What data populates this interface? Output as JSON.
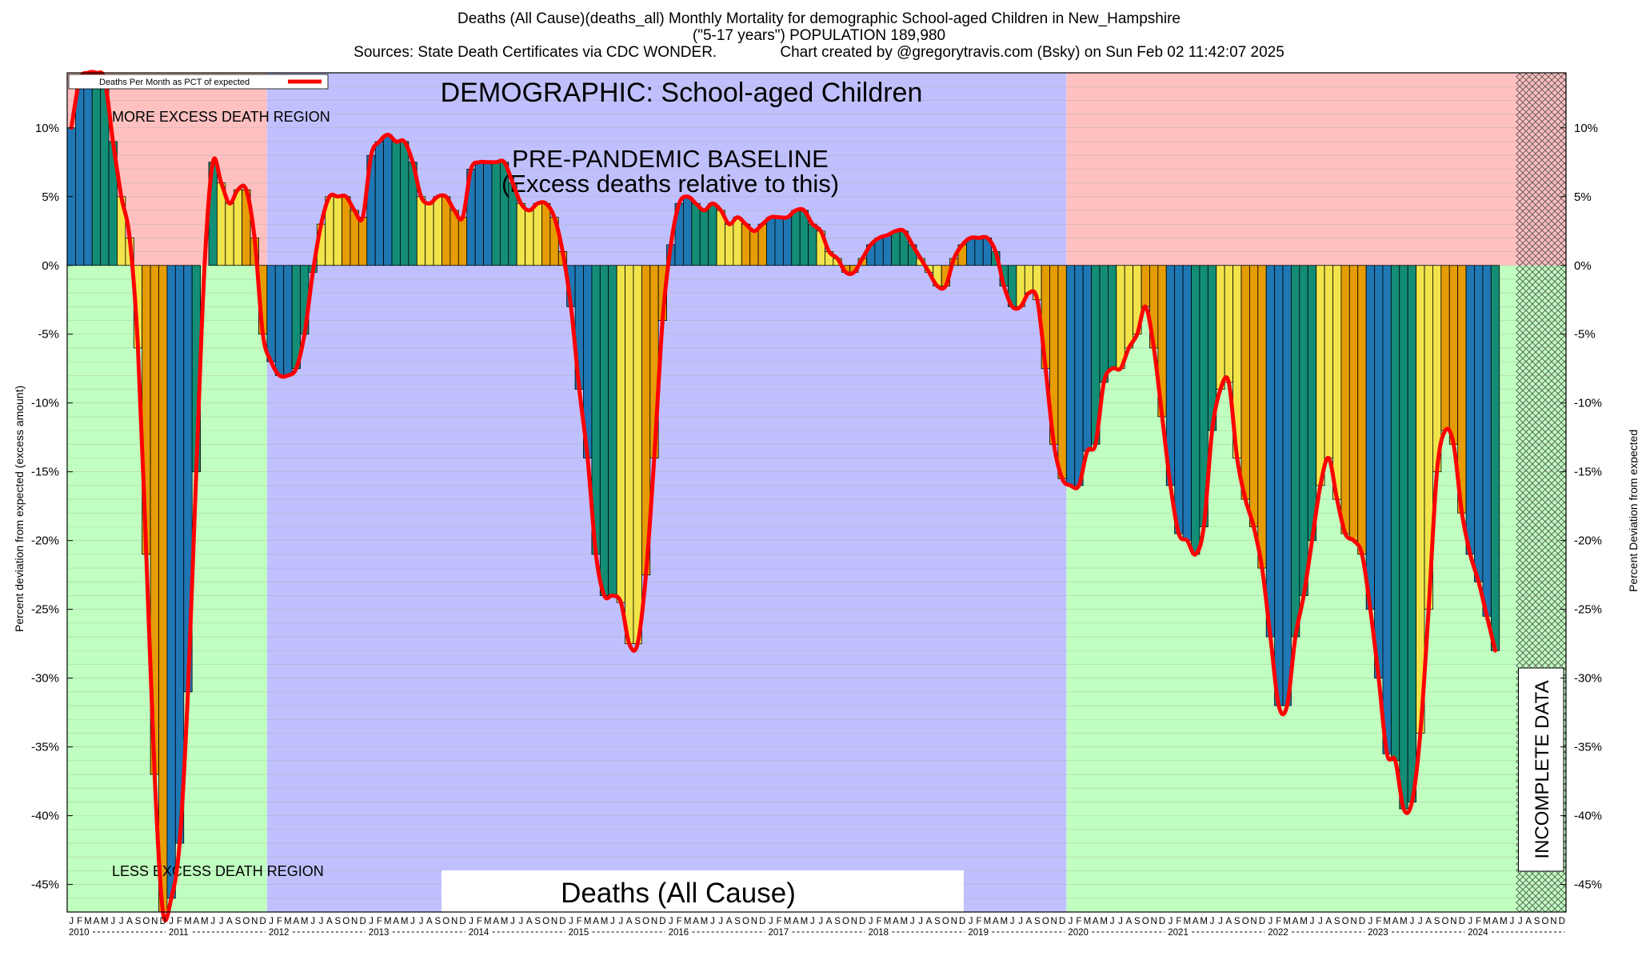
{
  "title": {
    "line1": "Deaths (All Cause)(deaths_all) Monthly Mortality for demographic School-aged Children in New_Hampshire",
    "line2": "(\"5-17 years\") POPULATION 189,980",
    "line3": "Sources: State Death Certificates via CDC WONDER.               Chart created by @gregorytravis.com (Bsky) on Sun Feb 02 11:42:07 2025"
  },
  "labels": {
    "demographic": "DEMOGRAPHIC: School-aged Children",
    "baseline_line1": "PRE-PANDEMIC BASELINE",
    "baseline_line2": "(Excess deaths relative to this)",
    "more_excess": "MORE EXCESS DEATH REGION",
    "less_excess": "LESS EXCESS DEATH REGION",
    "footer_box": "Deaths (All Cause)",
    "incomplete": "INCOMPLETE DATA",
    "legend": "Deaths Per Month as PCT of expected"
  },
  "colors": {
    "more_region": "#ffc0c0",
    "less_region": "#c0ffc0",
    "baseline_region": "#c0c0ff",
    "line": "#ff0000",
    "bar_palette": [
      "#1f77b4",
      "#138d75",
      "#f1e44a",
      "#e59c05"
    ]
  },
  "chart_data": {
    "type": "bar",
    "ylabel": "Percent deviation from expected (excess amount)",
    "ylabel_right": "Percent Deviation from expected",
    "ylim": [
      -47,
      14
    ],
    "yticks": [
      -45,
      -40,
      -35,
      -30,
      -25,
      -20,
      -15,
      -10,
      -5,
      0,
      5,
      10
    ],
    "ytick_labels": [
      "-45%",
      "-40%",
      "-35%",
      "-30%",
      "-25%",
      "-20%",
      "-15%",
      "-10%",
      "-5%",
      "0%",
      "5%",
      "10%"
    ],
    "month_letters": [
      "J",
      "F",
      "M",
      "A",
      "M",
      "J",
      "J",
      "A",
      "S",
      "O",
      "N",
      "D"
    ],
    "years": [
      "2010",
      "2011",
      "2012",
      "2013",
      "2014",
      "2015",
      "2016",
      "2017",
      "2018",
      "2019",
      "2020",
      "2021",
      "2022",
      "2023",
      "2024"
    ],
    "start": "2010-01",
    "baseline_period": [
      "2012-01",
      "2019-12"
    ],
    "incomplete_from": "2024-07",
    "grid": true,
    "legend_position": "top-left",
    "series": [
      {
        "name": "Deaths Per Month as PCT of expected",
        "values": [
          10,
          13.5,
          14,
          14,
          13.5,
          9,
          5,
          2,
          -6,
          -21,
          -37,
          -47,
          -46,
          -42,
          -31,
          -15,
          0,
          7.5,
          6,
          4.5,
          5.5,
          5.5,
          2,
          -5,
          -7,
          -8,
          -8,
          -7.5,
          -5,
          -0.5,
          3,
          5,
          5,
          5,
          4,
          3.5,
          8,
          9,
          9.5,
          9,
          9,
          7.5,
          5,
          4.5,
          5,
          5,
          4,
          3.5,
          7,
          7.5,
          7.5,
          7.5,
          7.5,
          6,
          4.5,
          4,
          4.5,
          4.5,
          3.5,
          1,
          -3,
          -9,
          -14,
          -21,
          -24,
          -24,
          -24.5,
          -27.5,
          -27.5,
          -22.5,
          -14,
          -4,
          1.5,
          4.5,
          5,
          4.5,
          4,
          4.5,
          4,
          3,
          3.5,
          3,
          2.5,
          3,
          3.5,
          3.5,
          3.5,
          4,
          4,
          3,
          2.5,
          1,
          0.5,
          -0.5,
          -0.5,
          0.5,
          1.5,
          2,
          2.2,
          2.5,
          2.5,
          1.5,
          0.5,
          -0.5,
          -1.5,
          -1.5,
          0.5,
          1.5,
          2,
          2,
          2,
          1,
          -1.5,
          -3,
          -3,
          -2,
          -2.5,
          -7.5,
          -13,
          -15.5,
          -16,
          -16,
          -13.5,
          -13,
          -8.5,
          -7.5,
          -7.5,
          -6,
          -5,
          -3,
          -6,
          -11,
          -16,
          -19.5,
          -20,
          -21,
          -19,
          -12,
          -9,
          -8.5,
          -14,
          -17,
          -19,
          -22,
          -27,
          -32,
          -32,
          -27,
          -24,
          -20,
          -16,
          -14,
          -17,
          -19.5,
          -20,
          -21,
          -25,
          -30,
          -35.5,
          -36,
          -39.5,
          -39,
          -34,
          -25,
          -15,
          -12,
          -13,
          -18,
          -21,
          -23,
          -25.5,
          -28
        ]
      }
    ]
  }
}
